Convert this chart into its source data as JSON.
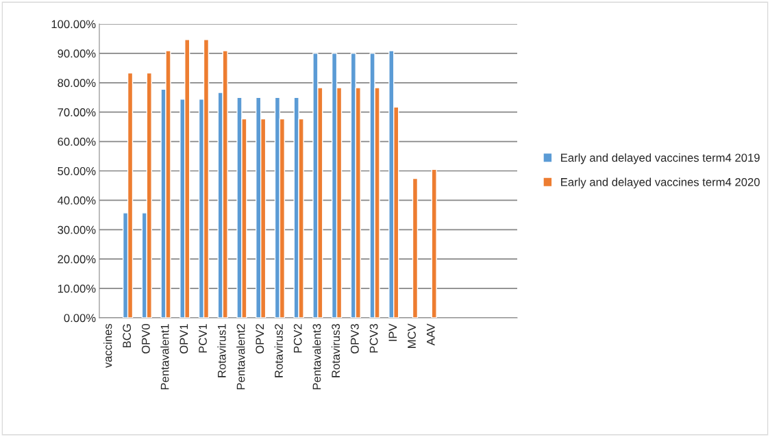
{
  "chart_data": {
    "type": "bar",
    "categories": [
      "vaccines",
      "BCG",
      "OPV0",
      "Pentavalent1",
      "OPV1",
      "PCV1",
      "Rotavirus1",
      "Pentavalent2",
      "OPV2",
      "Rotavirus2",
      "PCV2",
      "Pentavalent3",
      "Rotavirus3",
      "OPV3",
      "PCV3",
      "IPV",
      "MCV",
      "AAV",
      null,
      null,
      null,
      null
    ],
    "series": [
      {
        "name": "Early and delayed vaccines term4 2019",
        "color": "#5b9bd5",
        "values": [
          null,
          35.7,
          35.7,
          77.8,
          74.4,
          74.4,
          76.7,
          75,
          75,
          75,
          75,
          90,
          90,
          90,
          90,
          90.9,
          null,
          null,
          null,
          null,
          null,
          null
        ]
      },
      {
        "name": "Early and delayed vaccines term4 2020",
        "color": "#ed7d31",
        "values": [
          null,
          83.3,
          83.3,
          90.9,
          94.7,
          94.7,
          90.9,
          67.7,
          67.7,
          67.7,
          67.7,
          78.3,
          78.3,
          78.3,
          78.3,
          71.7,
          47.4,
          50.5,
          null,
          null,
          null,
          null
        ]
      }
    ],
    "ylim": [
      0,
      100
    ],
    "yticks": [
      {
        "value": 0,
        "label": "0.00%"
      },
      {
        "value": 10,
        "label": "10.00%"
      },
      {
        "value": 20,
        "label": "20.00%"
      },
      {
        "value": 30,
        "label": "30.00%"
      },
      {
        "value": 40,
        "label": "40.00%"
      },
      {
        "value": 50,
        "label": "50.00%"
      },
      {
        "value": 60,
        "label": "60.00%"
      },
      {
        "value": 70,
        "label": "70.00%"
      },
      {
        "value": 80,
        "label": "80.00%"
      },
      {
        "value": 90,
        "label": "90.00%"
      },
      {
        "value": 100,
        "label": "100.00%"
      }
    ],
    "grid": "y",
    "legend": "right"
  }
}
